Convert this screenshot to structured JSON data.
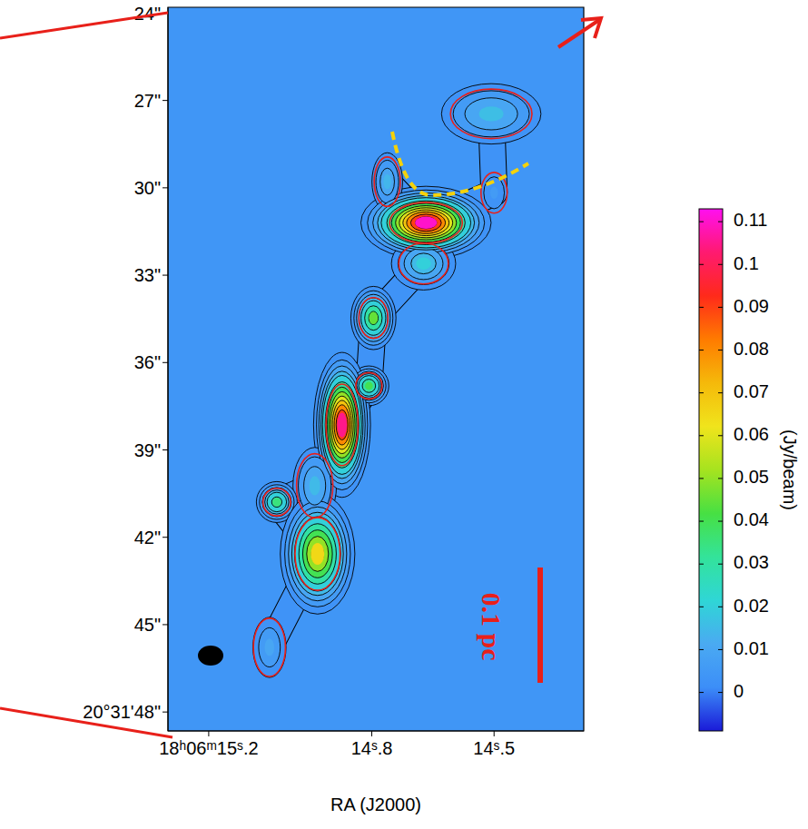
{
  "chart_data": {
    "type": "heatmap",
    "x_label": "RA (J2000)",
    "xlim": [
      15.3,
      14.28
    ],
    "xticks": [
      {
        "value": 15.2,
        "label": "18ʰ06ᵐ15ˢ.2"
      },
      {
        "value": 14.8,
        "label": "14ˢ.8"
      },
      {
        "value": 14.5,
        "label": "14ˢ.5"
      }
    ],
    "ylim": [
      48.65,
      23.8
    ],
    "yticks": [
      {
        "value": 24,
        "label": "24\""
      },
      {
        "value": 27,
        "label": "27\""
      },
      {
        "value": 30,
        "label": "30\""
      },
      {
        "value": 33,
        "label": "33\""
      },
      {
        "value": 36,
        "label": "36\""
      },
      {
        "value": 39,
        "label": "39\""
      },
      {
        "value": 42,
        "label": "42\""
      },
      {
        "value": 45,
        "label": "45\""
      },
      {
        "value": 48,
        "label": "20°31'48\""
      }
    ],
    "colorbar": {
      "label": "(Jy/beam)",
      "range": [
        -0.009,
        0.113
      ],
      "ticks": [
        0,
        0.01,
        0.02,
        0.03,
        0.04,
        0.05,
        0.06,
        0.07,
        0.08,
        0.09,
        0.1,
        0.11
      ]
    },
    "background": 0.004,
    "contours": [
      0.003,
      0.006,
      0.01,
      0.015,
      0.02,
      0.03,
      0.04,
      0.05,
      0.06,
      0.07,
      0.08,
      0.09,
      0.1
    ],
    "cores": [
      {
        "ra": 14.507,
        "dec": 27.46,
        "peak": 0.016,
        "width": 2.8,
        "height": 1.7
      },
      {
        "ra": 14.5,
        "dec": 30.17,
        "peak": 0.006,
        "width": 0.9,
        "height": 1.4
      },
      {
        "ra": 14.667,
        "dec": 31.2,
        "peak": 0.11,
        "width": 2.5,
        "height": 1.4
      },
      {
        "ra": 14.762,
        "dec": 29.79,
        "peak": 0.014,
        "width": 0.9,
        "height": 1.7
      },
      {
        "ra": 14.673,
        "dec": 32.6,
        "peak": 0.02,
        "width": 1.7,
        "height": 1.4
      },
      {
        "ra": 14.796,
        "dec": 34.47,
        "peak": 0.045,
        "width": 1.0,
        "height": 1.4
      },
      {
        "ra": 14.807,
        "dec": 36.8,
        "peak": 0.04,
        "width": 0.9,
        "height": 0.9
      },
      {
        "ra": 14.873,
        "dec": 38.14,
        "peak": 0.105,
        "width": 1.1,
        "height": 2.8
      },
      {
        "ra": 14.94,
        "dec": 40.23,
        "peak": 0.015,
        "width": 1.25,
        "height": 2.2
      },
      {
        "ra": 15.033,
        "dec": 40.79,
        "peak": 0.035,
        "width": 0.95,
        "height": 0.95
      },
      {
        "ra": 14.933,
        "dec": 42.57,
        "peak": 0.065,
        "width": 1.55,
        "height": 2.5
      },
      {
        "ra": 15.051,
        "dec": 45.78,
        "peak": 0.01,
        "width": 1.1,
        "height": 2.0
      }
    ],
    "scale_bar": "0.1 pc"
  }
}
